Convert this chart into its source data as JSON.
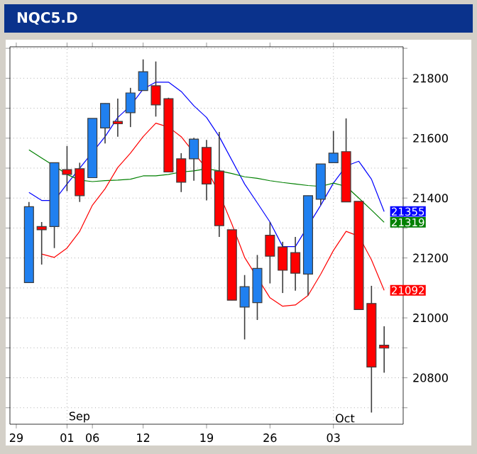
{
  "chart_data": {
    "type": "candlestick",
    "title": "NQC5.D",
    "categories": [
      "29",
      null,
      null,
      null,
      "01",
      null,
      "06",
      null,
      null,
      null,
      "12",
      null,
      null,
      null,
      null,
      "19",
      null,
      null,
      null,
      null,
      "26",
      null,
      null,
      null,
      null,
      "03",
      null,
      null,
      null,
      null,
      null
    ],
    "ohlc": [
      null,
      [
        21118,
        21387,
        21118,
        21371
      ],
      [
        21305,
        21320,
        21178,
        21294
      ],
      [
        21305,
        21518,
        21233,
        21518
      ],
      [
        21495,
        21574,
        21423,
        21479
      ],
      [
        21498,
        21518,
        21387,
        21408
      ],
      [
        21468,
        21666,
        21468,
        21666
      ],
      [
        21634,
        21716,
        21582,
        21716
      ],
      [
        21656,
        21732,
        21605,
        21648
      ],
      [
        21685,
        21768,
        21637,
        21751
      ],
      [
        21759,
        21863,
        21759,
        21822
      ],
      [
        21775,
        21856,
        21672,
        21711
      ],
      [
        21732,
        21735,
        21487,
        21487
      ],
      [
        21531,
        21550,
        21420,
        21453
      ],
      [
        21531,
        21601,
        21458,
        21597
      ],
      [
        21569,
        21594,
        21392,
        21447
      ],
      [
        21490,
        21621,
        21270,
        21308
      ],
      [
        21294,
        21294,
        21059,
        21059
      ],
      [
        21036,
        21143,
        20928,
        21104
      ],
      [
        21051,
        21210,
        20993,
        21165
      ],
      [
        21276,
        21320,
        21115,
        21206
      ],
      [
        21237,
        21254,
        21083,
        21159
      ],
      [
        21218,
        21270,
        21091,
        21149
      ],
      [
        21146,
        21408,
        21075,
        21408
      ],
      [
        21396,
        21514,
        21376,
        21514
      ],
      [
        21518,
        21624,
        21518,
        21550
      ],
      [
        21555,
        21666,
        21387,
        21387
      ],
      [
        21389,
        21389,
        21028,
        21028
      ],
      [
        21048,
        21107,
        20684,
        20836
      ],
      [
        20909,
        20972,
        20817,
        20899
      ],
      null
    ],
    "colors": [
      null,
      "#2080f0",
      "#ff0000",
      "#2080f0",
      "#ff0000",
      "#ff0000",
      "#2080f0",
      "#2080f0",
      "#ff0000",
      "#2080f0",
      "#2080f0",
      "#ff0000",
      "#ff0000",
      "#ff0000",
      "#2080f0",
      "#ff0000",
      "#ff0000",
      "#ff0000",
      "#2080f0",
      "#2080f0",
      "#ff0000",
      "#ff0000",
      "#ff0000",
      "#2080f0",
      "#2080f0",
      "#2080f0",
      "#ff0000",
      "#ff0000",
      "#ff0000",
      "#ff0000",
      null
    ],
    "series": [
      {
        "type": "line",
        "color": "#0000ff",
        "values": [
          null,
          21419,
          21392,
          21392,
          21447,
          null,
          null,
          21605,
          21669,
          21708,
          21764,
          21787,
          21787,
          21756,
          21708,
          21669,
          21605,
          21526,
          21447,
          21384,
          21320,
          21238,
          21238,
          null,
          21376,
          21450,
          21507,
          21523,
          21463,
          21355,
          null
        ],
        "value_labels": [
          null,
          null,
          null,
          null,
          null,
          null,
          null,
          null,
          null,
          null,
          null,
          null,
          null,
          null,
          null,
          null,
          null,
          null,
          null,
          null,
          null,
          null,
          null,
          null,
          null,
          null,
          null,
          null,
          null,
          "21355",
          null
        ]
      },
      {
        "type": "line",
        "color": "#008000",
        "values": [
          null,
          21561,
          21534,
          21507,
          21479,
          21460,
          21455,
          21458,
          21460,
          21463,
          21474,
          21474,
          21479,
          21487,
          21491,
          21498,
          21491,
          21482,
          21471,
          21466,
          21458,
          21452,
          21447,
          21442,
          21439,
          21450,
          21439,
          21400,
          21360,
          21319,
          null
        ],
        "value_labels": [
          null,
          null,
          null,
          null,
          null,
          null,
          null,
          null,
          null,
          null,
          null,
          null,
          null,
          null,
          null,
          null,
          null,
          null,
          null,
          null,
          null,
          null,
          null,
          null,
          null,
          null,
          null,
          null,
          null,
          "21319",
          null
        ]
      },
      {
        "type": "line",
        "color": "#ff0000",
        "values": [
          null,
          null,
          21213,
          21202,
          21233,
          21289,
          21376,
          21431,
          21502,
          21550,
          21605,
          21650,
          21637,
          21605,
          null,
          21498,
          21415,
          21313,
          21202,
          null,
          21067,
          21039,
          21043,
          21075,
          21146,
          21225,
          21289,
          21273,
          21194,
          21092,
          null
        ],
        "value_labels": [
          null,
          null,
          null,
          null,
          null,
          null,
          null,
          null,
          null,
          null,
          null,
          null,
          null,
          null,
          null,
          null,
          null,
          null,
          null,
          null,
          null,
          null,
          null,
          null,
          null,
          null,
          null,
          null,
          null,
          "21092",
          null
        ]
      }
    ],
    "ylim": [
      20645,
      21905
    ],
    "yticks": [
      {
        "value": 20700,
        "label": null
      },
      20800,
      {
        "value": 20900,
        "label": null
      },
      21000,
      {
        "value": 21100,
        "label": null
      },
      21200,
      {
        "value": 21300,
        "label": null
      },
      21400,
      {
        "value": 21500,
        "label": null
      },
      21600,
      {
        "value": 21700,
        "label": null
      },
      21800,
      {
        "value": 21900,
        "label": null
      }
    ],
    "ref_lines": [
      {
        "axis": "x",
        "value": "01",
        "label": "Sep",
        "color": "#808080",
        "line_style": "dotted"
      },
      {
        "axis": "x",
        "value": "03",
        "label": "Oct",
        "color": "#808080",
        "line_style": "dotted"
      }
    ],
    "grid": "y"
  }
}
